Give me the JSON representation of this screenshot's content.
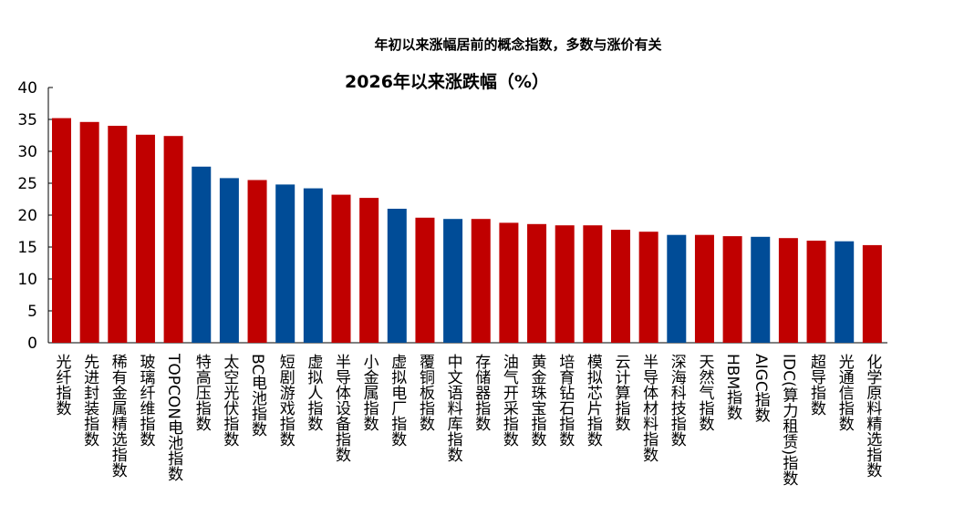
{
  "header": {
    "note": "年初以来涨幅居前的概念指数，多数与涨价有关"
  },
  "chart_data": {
    "type": "bar",
    "title": "2026年以来涨跌幅（%）",
    "xlabel": "",
    "ylabel": "",
    "ylim": [
      0,
      40
    ],
    "yticks": [
      0,
      5,
      10,
      15,
      20,
      25,
      30,
      35,
      40
    ],
    "grid": false,
    "colors": {
      "red": "#C00000",
      "blue": "#004C97"
    },
    "categories": [
      "光纤指数",
      "先进封装指数",
      "稀有金属精选指数",
      "玻璃纤维指数",
      "TOPCON电池指数",
      "特高压指数",
      "太空光伏指数",
      "BC电池指数",
      "短剧游戏指数",
      "虚拟人指数",
      "半导体设备指数",
      "小金属指数",
      "虚拟电厂指数",
      "覆铜板指数",
      "中文语料库指数",
      "存储器指数",
      "油气开采指数",
      "黄金珠宝指数",
      "培育钻石指数",
      "模拟芯片指数",
      "云计算指数",
      "半导体材料指数",
      "深海科技指数",
      "天然气指数",
      "HBM指数",
      "AIGC指数",
      "IDC(算力租赁)指数",
      "超导指数",
      "光通信指数",
      "化学原料精选指数"
    ],
    "values": [
      35.2,
      34.6,
      34.0,
      32.6,
      32.4,
      27.6,
      25.8,
      25.5,
      24.8,
      24.2,
      23.2,
      22.7,
      21.0,
      19.6,
      19.4,
      19.4,
      18.8,
      18.6,
      18.4,
      18.4,
      17.7,
      17.4,
      16.9,
      16.9,
      16.7,
      16.6,
      16.4,
      16.0,
      15.9,
      15.3
    ],
    "bar_colors": [
      "red",
      "red",
      "red",
      "red",
      "red",
      "blue",
      "blue",
      "red",
      "blue",
      "blue",
      "red",
      "red",
      "blue",
      "red",
      "blue",
      "red",
      "red",
      "red",
      "red",
      "red",
      "red",
      "red",
      "blue",
      "red",
      "red",
      "blue",
      "red",
      "red",
      "blue",
      "red"
    ]
  }
}
